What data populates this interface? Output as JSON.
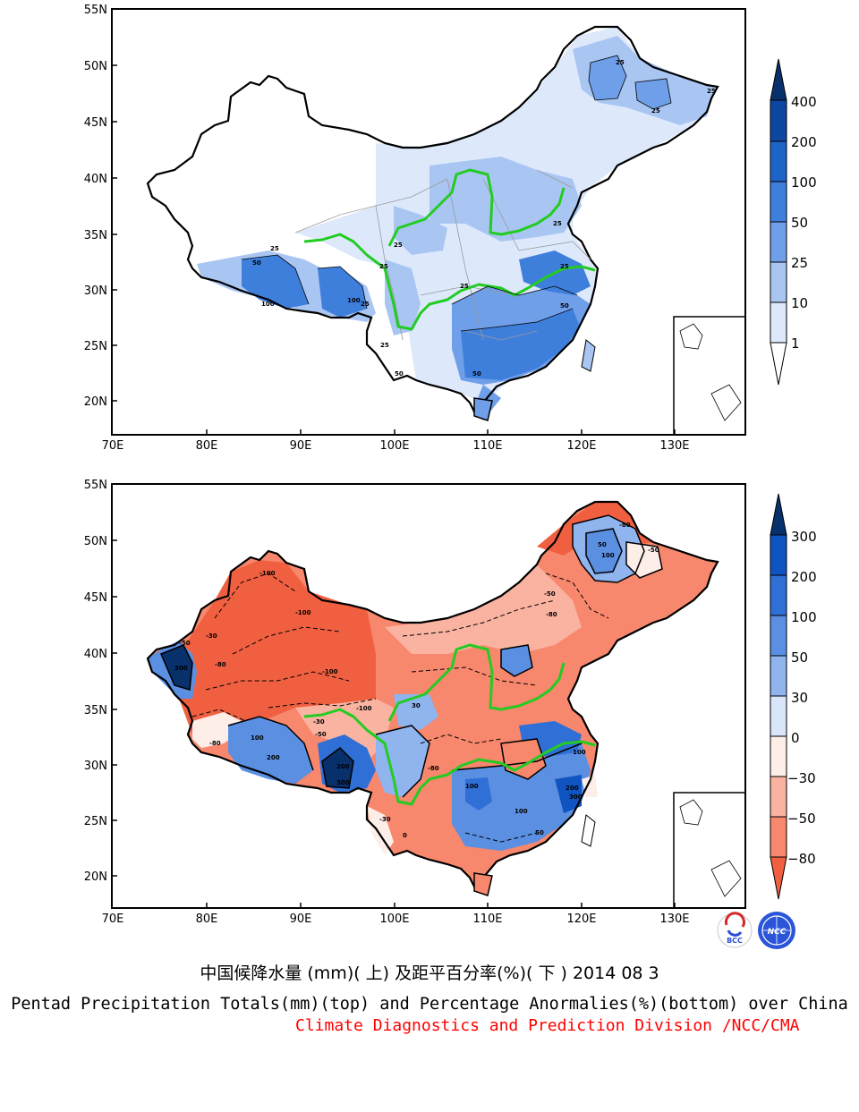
{
  "top_map": {
    "lat_labels": [
      "55N",
      "50N",
      "45N",
      "40N",
      "35N",
      "30N",
      "25N",
      "20N"
    ],
    "lon_labels": [
      "70E",
      "80E",
      "90E",
      "100E",
      "110E",
      "120E",
      "130E"
    ],
    "legend": [
      "400",
      "200",
      "100",
      "50",
      "25",
      "10",
      "1"
    ],
    "legend_colors": [
      "#08306b",
      "#0d47a1",
      "#1e63c8",
      "#3f7fdc",
      "#6f9fe8",
      "#a9c6f3",
      "#dde9fb",
      "#ffffff"
    ],
    "contour_labels": [
      "25",
      "25",
      "25",
      "25",
      "25",
      "50",
      "100",
      "100",
      "25",
      "25",
      "25",
      "25",
      "25",
      "50",
      "50",
      "25"
    ]
  },
  "bottom_map": {
    "lat_labels": [
      "55N",
      "50N",
      "45N",
      "40N",
      "35N",
      "30N",
      "25N",
      "20N"
    ],
    "lon_labels": [
      "70E",
      "80E",
      "90E",
      "100E",
      "110E",
      "120E",
      "130E"
    ],
    "legend": [
      "300",
      "200",
      "100",
      "50",
      "30",
      "0",
      "−30",
      "−50",
      "−80"
    ],
    "legend_colors": [
      "#08306b",
      "#1054c2",
      "#2f6fd6",
      "#5a8fe2",
      "#8fb4ee",
      "#d8e5fa",
      "#fdeee8",
      "#f9b3a0",
      "#f7876d",
      "#f06040"
    ],
    "contour_labels": [
      "-80",
      "50",
      "100",
      "-50",
      "-100",
      "-100",
      "-100",
      "-30",
      "-80",
      "-50",
      "300",
      "100",
      "200",
      "-100",
      "-80",
      "-30",
      "-50",
      "30",
      "-80",
      "100",
      "200",
      "300",
      "-50",
      "-80",
      "100",
      "50",
      "100",
      "200",
      "300",
      "-30",
      "0"
    ]
  },
  "logos": [
    "BCC",
    "NCC"
  ],
  "caption": {
    "chinese": "中国候降水量 (mm)( 上) 及距平百分率(%)( 下 ) 2014 08 3",
    "english": "Pentad Precipitation Totals(mm)(top) and Percentage Anormalies(%)(bottom) over China",
    "division": "Climate Diagnostics and Prediction Division /NCC/CMA"
  }
}
